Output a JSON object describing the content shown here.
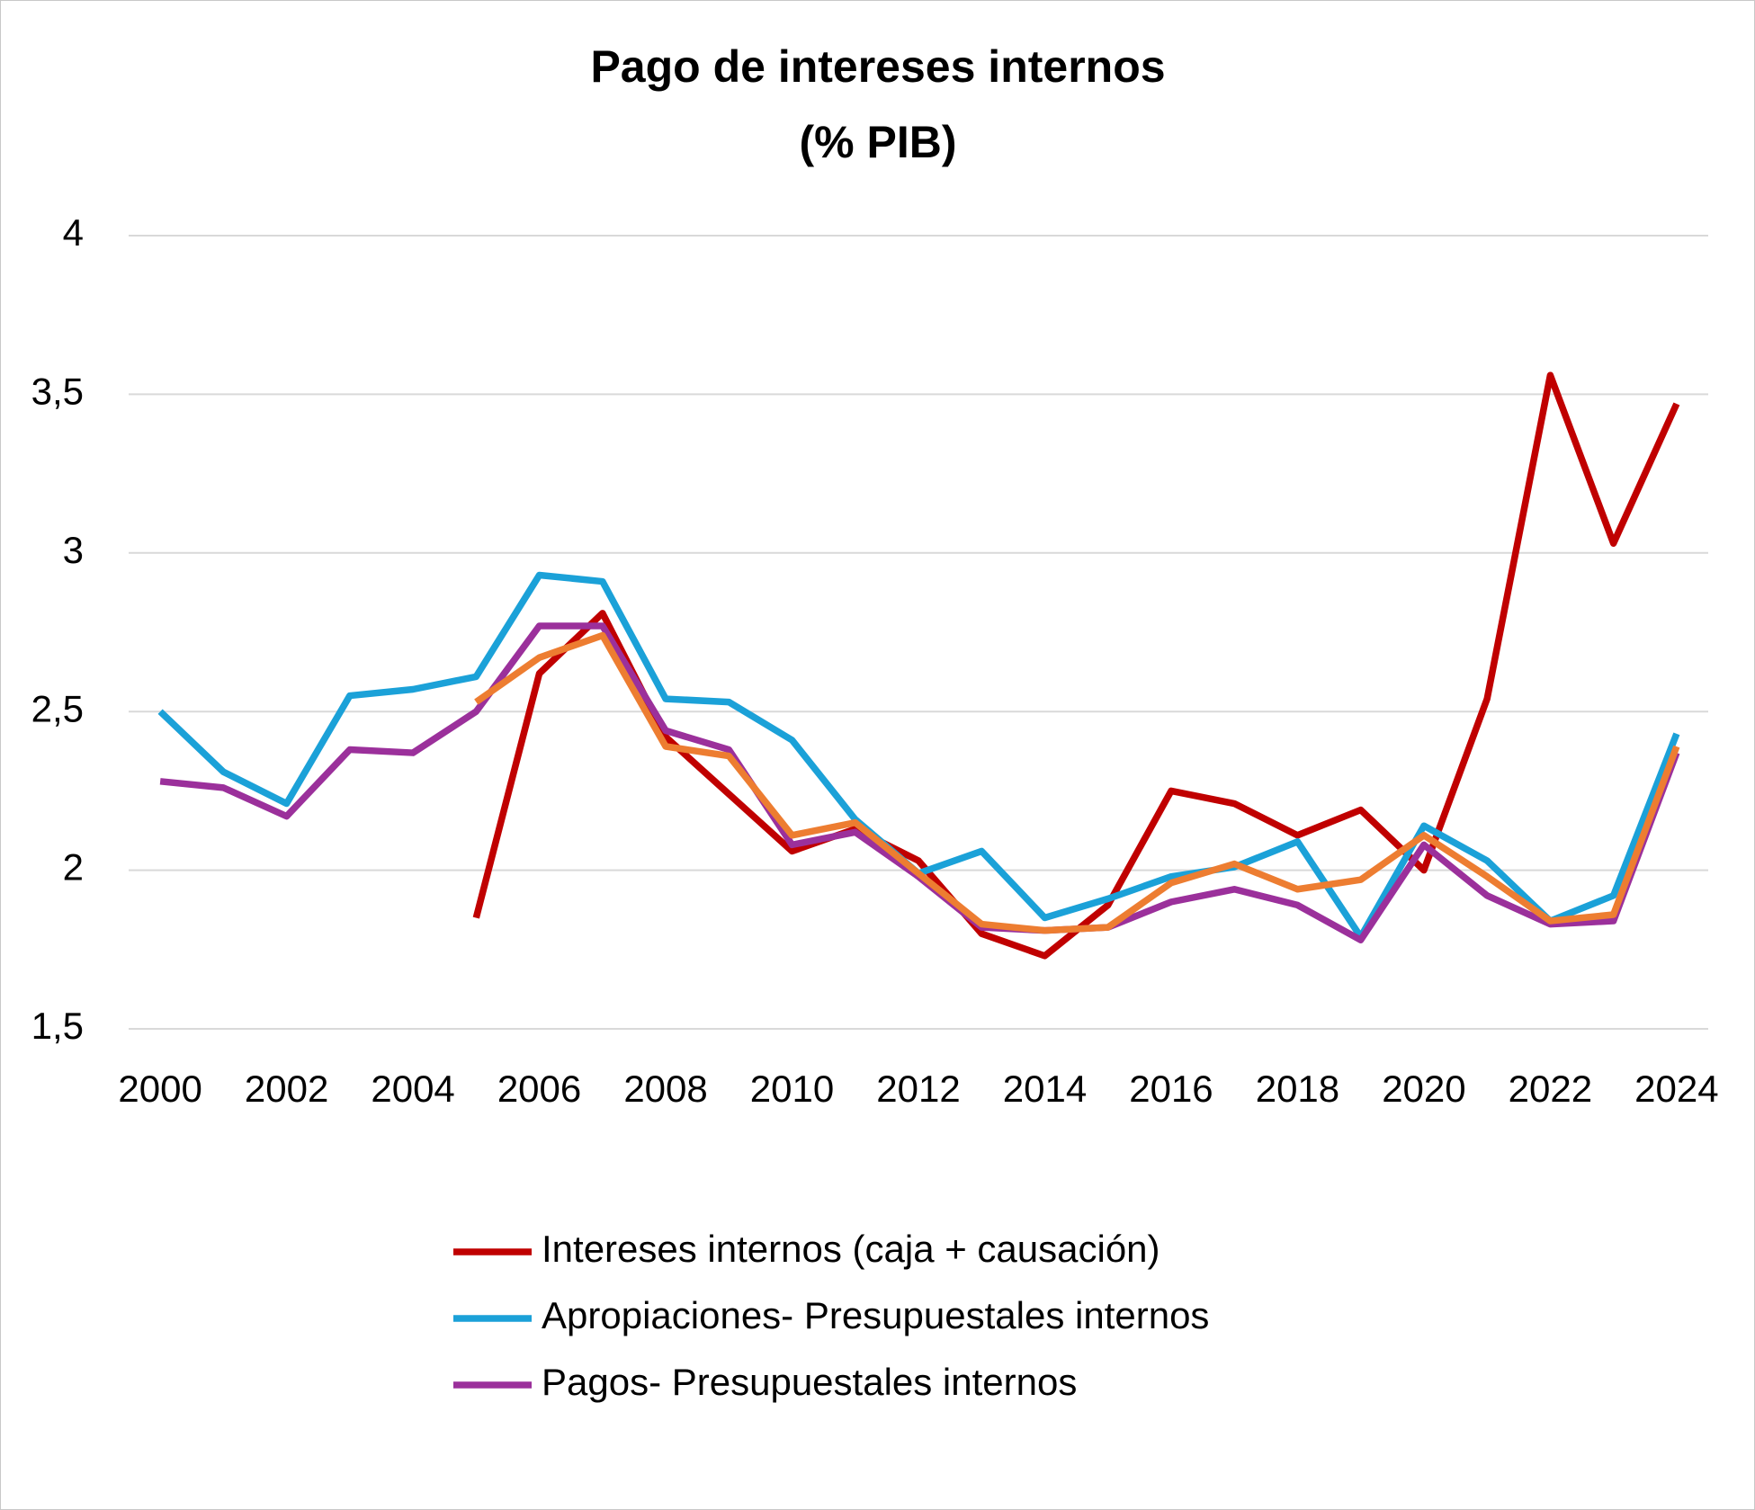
{
  "chart_data": {
    "type": "line",
    "title": "Pago de intereses internos",
    "subtitle": "(% PIB)",
    "x": [
      2000,
      2001,
      2002,
      2003,
      2004,
      2005,
      2006,
      2007,
      2008,
      2009,
      2010,
      2011,
      2012,
      2013,
      2014,
      2015,
      2016,
      2017,
      2018,
      2019,
      2020,
      2021,
      2022,
      2023,
      2024
    ],
    "xlim": [
      1999.5,
      2024.5
    ],
    "xticks": [
      2000,
      2002,
      2004,
      2006,
      2008,
      2010,
      2012,
      2014,
      2016,
      2018,
      2020,
      2022,
      2024
    ],
    "ylim": [
      1.5,
      4
    ],
    "yticks": [
      {
        "value": 1.5,
        "label": "1,5"
      },
      2,
      {
        "value": 2.5,
        "label": "2,5"
      },
      3,
      {
        "value": 3.5,
        "label": "3,5"
      },
      4
    ],
    "grid": true,
    "series": [
      {
        "name": "Intereses internos (caja + causación)",
        "color": "#c00000",
        "values": [
          null,
          null,
          null,
          null,
          null,
          1.85,
          2.62,
          2.81,
          2.42,
          2.24,
          2.06,
          2.13,
          2.03,
          1.8,
          1.73,
          1.89,
          2.25,
          2.21,
          2.11,
          2.19,
          2.0,
          2.54,
          3.56,
          3.03,
          3.47
        ]
      },
      {
        "name": "Apropiaciones- Presupuestales internos",
        "color": "#1ba1d8",
        "values": [
          2.5,
          2.31,
          2.21,
          2.55,
          2.57,
          2.61,
          2.93,
          2.91,
          2.54,
          2.53,
          2.41,
          2.16,
          1.99,
          2.06,
          1.85,
          1.91,
          1.98,
          2.01,
          2.09,
          1.79,
          2.14,
          2.03,
          1.84,
          1.92,
          2.43
        ]
      },
      {
        "name": "Pagos- Presupuestales internos",
        "color": "#9b309b",
        "values": [
          2.28,
          2.26,
          2.17,
          2.38,
          2.37,
          2.5,
          2.77,
          2.77,
          2.44,
          2.38,
          2.08,
          2.12,
          1.98,
          1.82,
          1.81,
          1.82,
          1.9,
          1.94,
          1.89,
          1.78,
          2.08,
          1.92,
          1.83,
          1.84,
          2.37
        ]
      },
      {
        "color": "#ed7d31",
        "values": [
          null,
          null,
          null,
          null,
          null,
          2.53,
          2.67,
          2.74,
          2.39,
          2.36,
          2.11,
          2.15,
          1.99,
          1.83,
          1.81,
          1.82,
          1.96,
          2.02,
          1.94,
          1.97,
          2.11,
          1.98,
          1.84,
          1.86,
          2.39
        ]
      }
    ]
  }
}
